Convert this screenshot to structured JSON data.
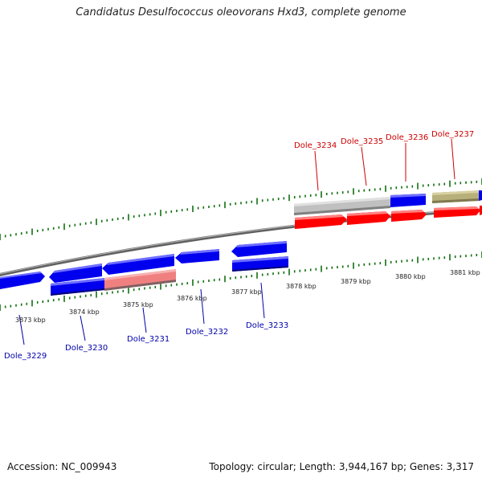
{
  "title": "Candidatus Desulfococcus oleovorans Hxd3, complete genome",
  "footer": {
    "accession": "Accession: NC_009943",
    "summary": "Topology: circular; Length: 3,944,167 bp; Genes: 3,317"
  },
  "colors": {
    "forward_gene": "#ff0000",
    "reverse_gene": "#0000ee",
    "highlight_reverse": "#f08080",
    "grey_feature": "#c0c0c0",
    "olive_feature": "#b8b07a",
    "tick": "#107010",
    "backbone": "#808080",
    "label_forward": "#cc0000",
    "label_reverse": "#0000aa"
  },
  "scale_labels": [
    {
      "text": "3873 kbp"
    },
    {
      "text": "3874 kbp"
    },
    {
      "text": "3875 kbp"
    },
    {
      "text": "3876 kbp"
    },
    {
      "text": "3877 kbp"
    },
    {
      "text": "3878 kbp"
    },
    {
      "text": "3879 kbp"
    },
    {
      "text": "3880 kbp"
    },
    {
      "text": "3881 kbp"
    }
  ],
  "gene_labels": [
    {
      "text": "Dole_3229",
      "strand": "reverse"
    },
    {
      "text": "Dole_3230",
      "strand": "reverse"
    },
    {
      "text": "Dole_3231",
      "strand": "reverse"
    },
    {
      "text": "Dole_3232",
      "strand": "reverse"
    },
    {
      "text": "Dole_3233",
      "strand": "reverse"
    },
    {
      "text": "Dole_3234",
      "strand": "forward"
    },
    {
      "text": "Dole_3235",
      "strand": "forward"
    },
    {
      "text": "Dole_3236",
      "strand": "forward"
    },
    {
      "text": "Dole_3237",
      "strand": "forward"
    }
  ]
}
